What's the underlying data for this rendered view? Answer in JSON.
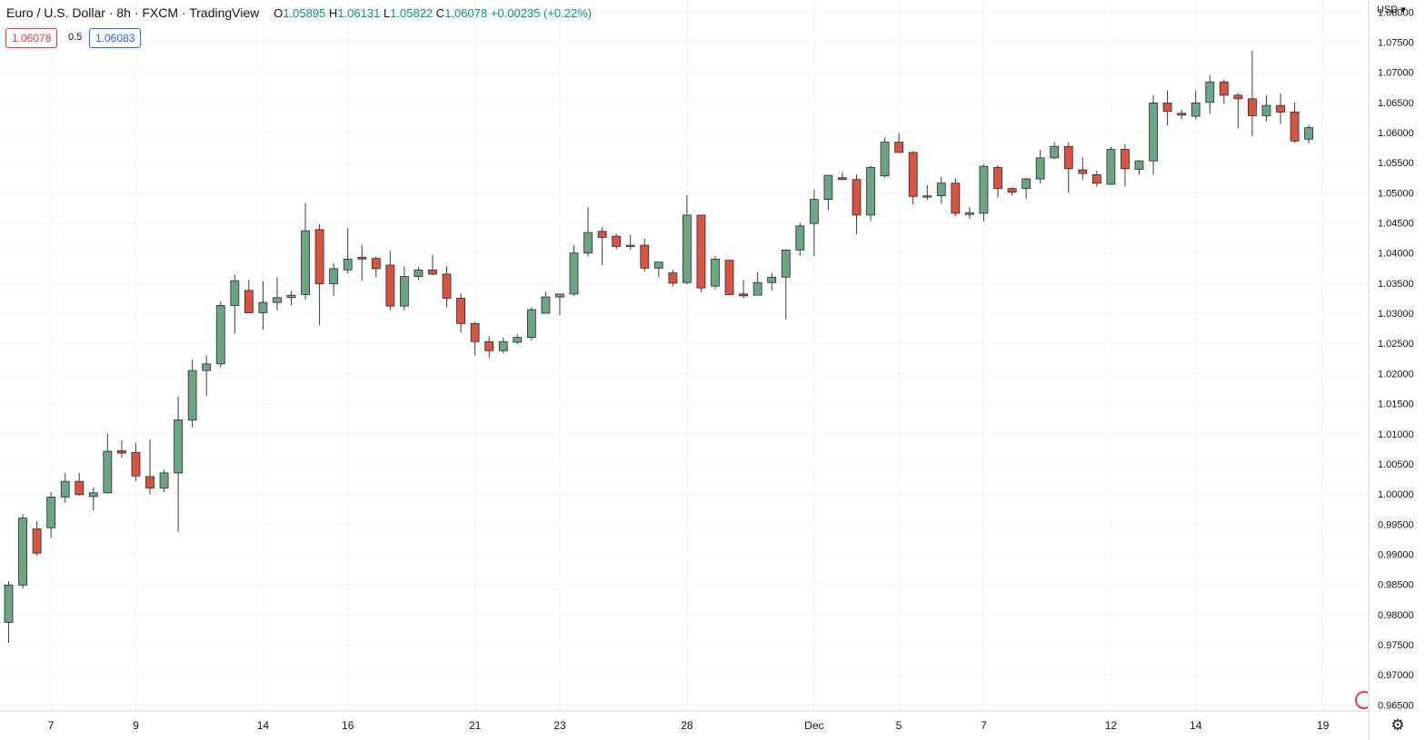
{
  "header": {
    "title": "Euro / U.S. Dollar · 8h · FXCM · TradingView",
    "ohlc": {
      "o_label": "O",
      "o": "1.05895",
      "h_label": "H",
      "h": "1.06131",
      "l_label": "L",
      "l": "1.05822",
      "c_label": "C",
      "c": "1.06078",
      "change": "+0.00235 (+0.22%)"
    }
  },
  "trade": {
    "sell_price": "1.06078",
    "spread": "0.5",
    "buy_price": "1.06083"
  },
  "price_scale": {
    "currency": "USD"
  },
  "colors": {
    "up": "#6ba583",
    "down": "#d75442",
    "wick": "#3d3d3d",
    "grid": "#f0f3fa",
    "axis_text": "#131722"
  },
  "icons": [
    "settings-gear-icon",
    "tradingview-logo-icon",
    "currency-dropdown-icon"
  ],
  "chart_data": {
    "type": "candlestick",
    "title": "Euro / U.S. Dollar · 8h · FXCM · TradingView",
    "ylim": [
      0.964,
      1.082
    ],
    "y_ticks": [
      "1.08000",
      "1.07500",
      "1.07000",
      "1.06500",
      "1.06000",
      "1.05500",
      "1.05000",
      "1.04500",
      "1.04000",
      "1.03500",
      "1.03000",
      "1.02500",
      "1.02000",
      "1.01500",
      "1.01000",
      "1.00500",
      "1.00000",
      "0.99500",
      "0.99000",
      "0.98500",
      "0.98000",
      "0.97500",
      "0.97000",
      "0.96500"
    ],
    "x_labels": [
      {
        "label": "7",
        "index": 3
      },
      {
        "label": "9",
        "index": 9
      },
      {
        "label": "14",
        "index": 18
      },
      {
        "label": "16",
        "index": 24
      },
      {
        "label": "21",
        "index": 33
      },
      {
        "label": "23",
        "index": 39
      },
      {
        "label": "28",
        "index": 48
      },
      {
        "label": "Dec",
        "index": 57
      },
      {
        "label": "5",
        "index": 63
      },
      {
        "label": "7",
        "index": 69
      },
      {
        "label": "12",
        "index": 78
      },
      {
        "label": "14",
        "index": 84
      },
      {
        "label": "19",
        "index": 93
      }
    ],
    "ohlc": [
      [
        0.9787,
        0.9855,
        0.9753,
        0.9849
      ],
      [
        0.9849,
        0.9967,
        0.9843,
        0.996
      ],
      [
        0.9942,
        0.9955,
        0.9898,
        0.9902
      ],
      [
        0.9944,
        1.0003,
        0.9927,
        0.9995
      ],
      [
        0.9995,
        1.0035,
        0.9986,
        1.0021
      ],
      [
        1.0021,
        1.0035,
        0.9997,
        0.9999
      ],
      [
        0.9996,
        1.0011,
        0.9973,
        1.0002
      ],
      [
        1.0002,
        1.01,
        1.0001,
        1.0071
      ],
      [
        1.0072,
        1.0089,
        1.006,
        1.0068
      ],
      [
        1.0069,
        1.0085,
        1.0022,
        1.003
      ],
      [
        1.0029,
        1.0091,
        0.9999,
        1.001
      ],
      [
        1.001,
        1.004,
        1.0003,
        1.0035
      ],
      [
        1.0035,
        1.0162,
        0.9937,
        1.0123
      ],
      [
        1.0123,
        1.0223,
        1.0111,
        1.0205
      ],
      [
        1.0205,
        1.023,
        1.0163,
        1.0216
      ],
      [
        1.0216,
        1.032,
        1.021,
        1.0313
      ],
      [
        1.0313,
        1.0364,
        1.0266,
        1.0354
      ],
      [
        1.0338,
        1.0356,
        1.03,
        1.0301
      ],
      [
        1.0301,
        1.0353,
        1.0273,
        1.0318
      ],
      [
        1.0318,
        1.036,
        1.0305,
        1.0326
      ],
      [
        1.0326,
        1.0337,
        1.0313,
        1.033
      ],
      [
        1.0331,
        1.0483,
        1.0323,
        1.0437
      ],
      [
        1.0439,
        1.0448,
        1.028,
        1.0349
      ],
      [
        1.0349,
        1.0383,
        1.0329,
        1.0374
      ],
      [
        1.0372,
        1.0441,
        1.0366,
        1.039
      ],
      [
        1.0393,
        1.0414,
        1.0354,
        1.039
      ],
      [
        1.0391,
        1.0394,
        1.036,
        1.0374
      ],
      [
        1.038,
        1.0403,
        1.0305,
        1.0312
      ],
      [
        1.0312,
        1.0378,
        1.0305,
        1.0361
      ],
      [
        1.0361,
        1.0377,
        1.0355,
        1.0372
      ],
      [
        1.0372,
        1.0397,
        1.0363,
        1.0365
      ],
      [
        1.0365,
        1.0378,
        1.031,
        1.0325
      ],
      [
        1.0325,
        1.0333,
        1.0268,
        1.0283
      ],
      [
        1.0283,
        1.0286,
        1.023,
        1.0253
      ],
      [
        1.0253,
        1.0262,
        1.0226,
        1.0238
      ],
      [
        1.0238,
        1.026,
        1.0234,
        1.0253
      ],
      [
        1.0252,
        1.0265,
        1.0249,
        1.026
      ],
      [
        1.026,
        1.031,
        1.0255,
        1.0306
      ],
      [
        1.03,
        1.0336,
        1.03,
        1.0327
      ],
      [
        1.0327,
        1.033,
        1.0297,
        1.0332
      ],
      [
        1.0332,
        1.0413,
        1.0329,
        1.04
      ],
      [
        1.04,
        1.0476,
        1.0394,
        1.0434
      ],
      [
        1.0436,
        1.0443,
        1.038,
        1.0426
      ],
      [
        1.0428,
        1.0432,
        1.0406,
        1.0411
      ],
      [
        1.0411,
        1.043,
        1.0405,
        1.0413
      ],
      [
        1.0413,
        1.0424,
        1.0369,
        1.0375
      ],
      [
        1.0375,
        1.038,
        1.036,
        1.0385
      ],
      [
        1.0367,
        1.0372,
        1.0345,
        1.035
      ],
      [
        1.0351,
        1.0496,
        1.0348,
        1.0463
      ],
      [
        1.0463,
        1.0463,
        1.0335,
        1.0342
      ],
      [
        1.0345,
        1.0395,
        1.034,
        1.039
      ],
      [
        1.0388,
        1.0387,
        1.033,
        1.0331
      ],
      [
        1.0332,
        1.0355,
        1.0325,
        1.0329
      ],
      [
        1.033,
        1.0368,
        1.033,
        1.0351
      ],
      [
        1.0351,
        1.0367,
        1.0338,
        1.036
      ],
      [
        1.036,
        1.0405,
        1.029,
        1.0405
      ],
      [
        1.0405,
        1.045,
        1.0395,
        1.0445
      ],
      [
        1.0449,
        1.0505,
        1.0395,
        1.0489
      ],
      [
        1.0489,
        1.052,
        1.0471,
        1.0529
      ],
      [
        1.0525,
        1.0534,
        1.0521,
        1.0522
      ],
      [
        1.0522,
        1.053,
        1.0432,
        1.0463
      ],
      [
        1.0463,
        1.0545,
        1.0453,
        1.0542
      ],
      [
        1.0528,
        1.0592,
        1.0525,
        1.0584
      ],
      [
        1.0584,
        1.0599,
        1.057,
        1.0567
      ],
      [
        1.0567,
        1.0569,
        1.0481,
        1.0494
      ],
      [
        1.0494,
        1.0513,
        1.0488,
        1.0495
      ],
      [
        1.0495,
        1.0527,
        1.0482,
        1.0516
      ],
      [
        1.0516,
        1.0524,
        1.0461,
        1.0466
      ],
      [
        1.0464,
        1.0476,
        1.0457,
        1.0467
      ],
      [
        1.0466,
        1.0547,
        1.0453,
        1.0544
      ],
      [
        1.0542,
        1.0546,
        1.0492,
        1.0507
      ],
      [
        1.0507,
        1.0509,
        1.0496,
        1.0501
      ],
      [
        1.0507,
        1.0525,
        1.049,
        1.0523
      ],
      [
        1.0523,
        1.0571,
        1.0516,
        1.0558
      ],
      [
        1.0558,
        1.0584,
        1.0556,
        1.0577
      ],
      [
        1.0577,
        1.0584,
        1.05,
        1.054
      ],
      [
        1.0538,
        1.0559,
        1.0522,
        1.0532
      ],
      [
        1.053,
        1.0537,
        1.051,
        1.0516
      ],
      [
        1.0514,
        1.0576,
        1.0515,
        1.0572
      ],
      [
        1.0572,
        1.0581,
        1.051,
        1.054
      ],
      [
        1.0539,
        1.0555,
        1.053,
        1.0553
      ],
      [
        1.0553,
        1.0662,
        1.053,
        1.0649
      ],
      [
        1.0649,
        1.067,
        1.0612,
        1.0635
      ],
      [
        1.0632,
        1.0638,
        1.0622,
        1.0629
      ],
      [
        1.0627,
        1.067,
        1.0622,
        1.0649
      ],
      [
        1.065,
        1.0695,
        1.0631,
        1.0684
      ],
      [
        1.0684,
        1.0688,
        1.0648,
        1.0662
      ],
      [
        1.0662,
        1.0665,
        1.0607,
        1.0656
      ],
      [
        1.0656,
        1.0736,
        1.0594,
        1.0628
      ],
      [
        1.0628,
        1.0662,
        1.0618,
        1.0645
      ],
      [
        1.0645,
        1.0665,
        1.0614,
        1.0634
      ],
      [
        1.0634,
        1.065,
        1.0583,
        1.0586
      ],
      [
        1.0589,
        1.0613,
        1.0582,
        1.0608
      ]
    ]
  }
}
